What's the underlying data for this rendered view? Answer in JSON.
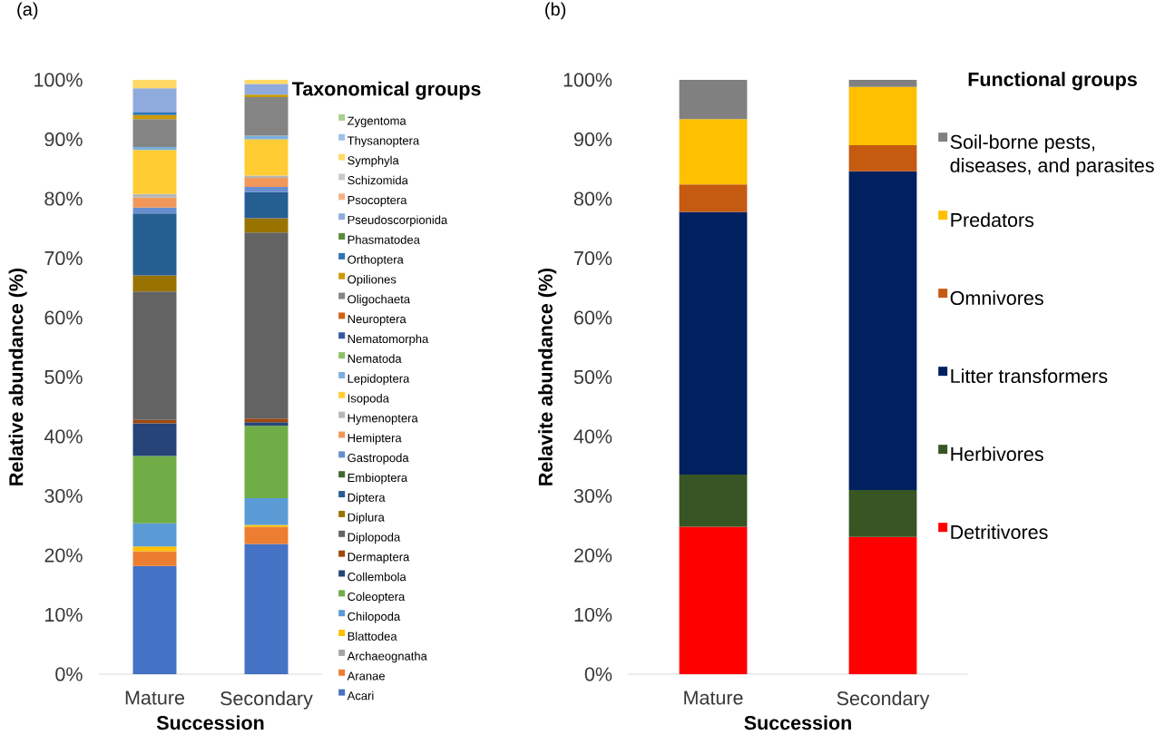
{
  "chart_data": [
    {
      "type": "bar",
      "title": "(a)",
      "stacked": true,
      "xlabel": "Succession",
      "ylabel": "Relative abundance (%)",
      "legend_title": "Taxonomical groups",
      "legend": "right",
      "categories": [
        "Mature",
        "Secondary"
      ],
      "ylim": [
        0,
        100
      ],
      "yticks": [
        {
          "value": 0,
          "label": "0%"
        },
        {
          "value": 10,
          "label": "10%"
        },
        {
          "value": 20,
          "label": "20%"
        },
        {
          "value": 30,
          "label": "30%"
        },
        {
          "value": 40,
          "label": "40%"
        },
        {
          "value": 50,
          "label": "50%"
        },
        {
          "value": 60,
          "label": "60%"
        },
        {
          "value": 70,
          "label": "70%"
        },
        {
          "value": 80,
          "label": "80%"
        },
        {
          "value": 90,
          "label": "90%"
        },
        {
          "value": 100,
          "label": "100%"
        }
      ],
      "series": [
        {
          "name": "Acari",
          "color": "#4472c4",
          "values": [
            18.2,
            21.9
          ]
        },
        {
          "name": "Aranae",
          "color": "#ed7d31",
          "values": [
            2.5,
            2.9
          ]
        },
        {
          "name": "Archaeognatha",
          "color": "#a5a5a5",
          "values": [
            null,
            null
          ]
        },
        {
          "name": "Blattodea",
          "color": "#ffc000",
          "values": [
            0.8,
            0.3
          ]
        },
        {
          "name": "Chilopoda",
          "color": "#5b9bd5",
          "values": [
            3.9,
            4.5
          ]
        },
        {
          "name": "Coleoptera",
          "color": "#70ad47",
          "values": [
            11.3,
            12.2
          ]
        },
        {
          "name": "Collembola",
          "color": "#264478",
          "values": [
            5.5,
            0.6
          ]
        },
        {
          "name": "Dermaptera",
          "color": "#9e480e",
          "values": [
            0.6,
            0.6
          ]
        },
        {
          "name": "Diplopoda",
          "color": "#636363",
          "values": [
            21.6,
            31.3
          ]
        },
        {
          "name": "Diplura",
          "color": "#997300",
          "values": [
            2.7,
            2.4
          ]
        },
        {
          "name": "Diptera",
          "color": "#255e91",
          "values": [
            10.4,
            4.4
          ]
        },
        {
          "name": "Embioptera",
          "color": "#43682b",
          "values": [
            null,
            null
          ]
        },
        {
          "name": "Gastropoda",
          "color": "#698ed0",
          "values": [
            1.0,
            0.9
          ]
        },
        {
          "name": "Hemiptera",
          "color": "#f1975a",
          "values": [
            1.7,
            1.5
          ]
        },
        {
          "name": "Hymenoptera",
          "color": "#b7b7b7",
          "values": [
            0.6,
            0.4
          ]
        },
        {
          "name": "Isopoda",
          "color": "#ffcd33",
          "values": [
            7.4,
            6.1
          ]
        },
        {
          "name": "Lepidoptera",
          "color": "#7cafdd",
          "values": [
            0.5,
            0.6
          ]
        },
        {
          "name": "Nematoda",
          "color": "#8cc168",
          "values": [
            null,
            null
          ]
        },
        {
          "name": "Nematomorpha",
          "color": "#335aa1",
          "values": [
            null,
            null
          ]
        },
        {
          "name": "Neuroptera",
          "color": "#d26012",
          "values": [
            null,
            null
          ]
        },
        {
          "name": "Oligochaeta",
          "color": "#848484",
          "values": [
            4.7,
            6.5
          ]
        },
        {
          "name": "Opiliones",
          "color": "#cc9a00",
          "values": [
            0.7,
            0.4
          ]
        },
        {
          "name": "Orthoptera",
          "color": "#2e75b6",
          "values": [
            0.4,
            null
          ]
        },
        {
          "name": "Phasmatodea",
          "color": "#5a8a39",
          "values": [
            null,
            null
          ]
        },
        {
          "name": "Pseudoscorpionida",
          "color": "#8faadc",
          "values": [
            4.1,
            1.8
          ]
        },
        {
          "name": "Psocoptera",
          "color": "#f4b183",
          "values": [
            null,
            null
          ]
        },
        {
          "name": "Schizomida",
          "color": "#c9c9c9",
          "values": [
            null,
            null
          ]
        },
        {
          "name": "Symphyla",
          "color": "#ffd966",
          "values": [
            1.4,
            0.7
          ]
        },
        {
          "name": "Thysanoptera",
          "color": "#9dc3e6",
          "values": [
            null,
            null
          ]
        },
        {
          "name": "Zygentoma",
          "color": "#a9d18e",
          "values": [
            null,
            null
          ]
        }
      ]
    },
    {
      "type": "bar",
      "title": "(b)",
      "stacked": true,
      "xlabel": "Succession",
      "ylabel": "Relavite abundance (%)",
      "legend_title": "Functional groups",
      "legend": "right",
      "categories": [
        "Mature",
        "Secondary"
      ],
      "ylim": [
        0,
        100
      ],
      "yticks": [
        {
          "value": 0,
          "label": "0%"
        },
        {
          "value": 10,
          "label": "10%"
        },
        {
          "value": 20,
          "label": "20%"
        },
        {
          "value": 30,
          "label": "30%"
        },
        {
          "value": 40,
          "label": "40%"
        },
        {
          "value": 50,
          "label": "50%"
        },
        {
          "value": 60,
          "label": "60%"
        },
        {
          "value": 70,
          "label": "70%"
        },
        {
          "value": 80,
          "label": "80%"
        },
        {
          "value": 90,
          "label": "90%"
        },
        {
          "value": 100,
          "label": "100%"
        }
      ],
      "series": [
        {
          "name": "Detritivores",
          "color": "#ff0000",
          "values": [
            24.8,
            23.1
          ]
        },
        {
          "name": "Herbivores",
          "color": "#375623",
          "values": [
            8.8,
            7.9
          ]
        },
        {
          "name": "Litter transformers",
          "color": "#002060",
          "values": [
            44.2,
            53.6
          ]
        },
        {
          "name": "Omnivores",
          "color": "#c55a11",
          "values": [
            4.6,
            4.4
          ]
        },
        {
          "name": "Predators",
          "color": "#ffc000",
          "values": [
            11.0,
            9.8
          ]
        },
        {
          "name": "Soil-borne pests, diseases, and parasites",
          "color": "#808080",
          "values": [
            6.6,
            1.2
          ]
        }
      ]
    }
  ]
}
